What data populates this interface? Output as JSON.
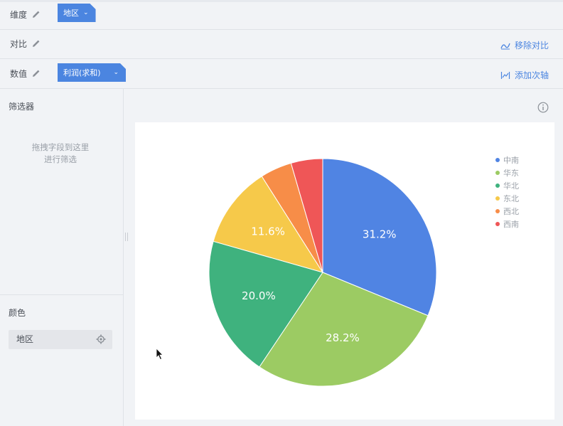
{
  "rows": {
    "dimension": {
      "label": "维度",
      "pill": "地区"
    },
    "compare": {
      "label": "对比",
      "action": "移除对比"
    },
    "value": {
      "label": "数值",
      "pill": "利润(求和)",
      "action": "添加次轴"
    }
  },
  "filter": {
    "title": "筛选器",
    "hint_line1": "拖拽字段到这里",
    "hint_line2": "进行筛选"
  },
  "color": {
    "title": "颜色",
    "chip": "地区"
  },
  "colors": {
    "accent": "#4b85e0"
  },
  "chart_data": {
    "type": "pie",
    "categories": [
      "中南",
      "华东",
      "华北",
      "东北",
      "西北",
      "西南"
    ],
    "values": [
      31.2,
      28.2,
      20.0,
      11.6,
      4.5,
      4.5
    ],
    "data_labels": [
      "31.2%",
      "28.2%",
      "20.0%",
      "11.6%",
      "",
      ""
    ],
    "colors": [
      "#5084e3",
      "#9ccb63",
      "#3fb27e",
      "#f6c94a",
      "#f78d48",
      "#ef5657"
    ],
    "legend": "top-right"
  }
}
